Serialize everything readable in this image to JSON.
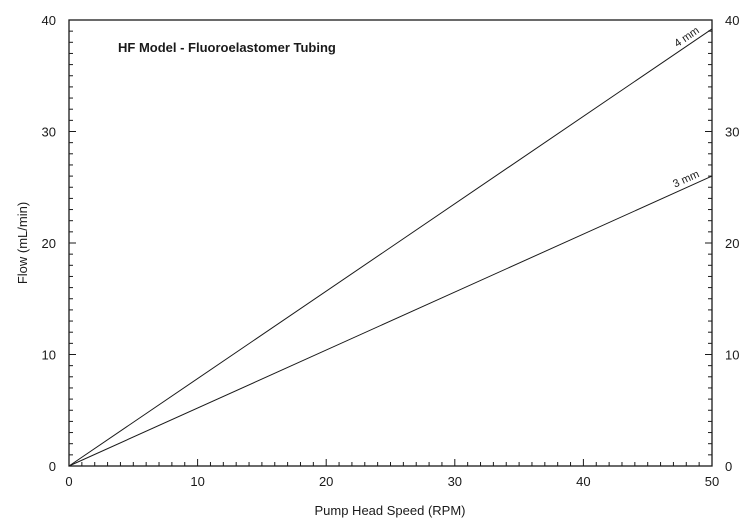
{
  "chart_data": {
    "type": "line",
    "title": "HF Model - Fluoroelastomer Tubing",
    "xlabel": "Pump Head Speed (RPM)",
    "ylabel": "Flow (mL/min)",
    "xlim": [
      0,
      50
    ],
    "ylim": [
      0,
      40
    ],
    "x_ticks": [
      0,
      10,
      20,
      30,
      40,
      50
    ],
    "y_ticks": [
      0,
      10,
      20,
      30,
      40
    ],
    "y_ticks_right": [
      0,
      10,
      20,
      30,
      40
    ],
    "minor_tick_step_x": 1,
    "minor_tick_step_y": 1,
    "grid": false,
    "series": [
      {
        "name": "4 mm",
        "x": [
          0,
          50
        ],
        "y": [
          0,
          39.2
        ]
      },
      {
        "name": "3 mm",
        "x": [
          0,
          50
        ],
        "y": [
          0,
          26
        ]
      }
    ],
    "colors": {
      "line": "#1a1a1a",
      "background": "#ffffff"
    }
  }
}
